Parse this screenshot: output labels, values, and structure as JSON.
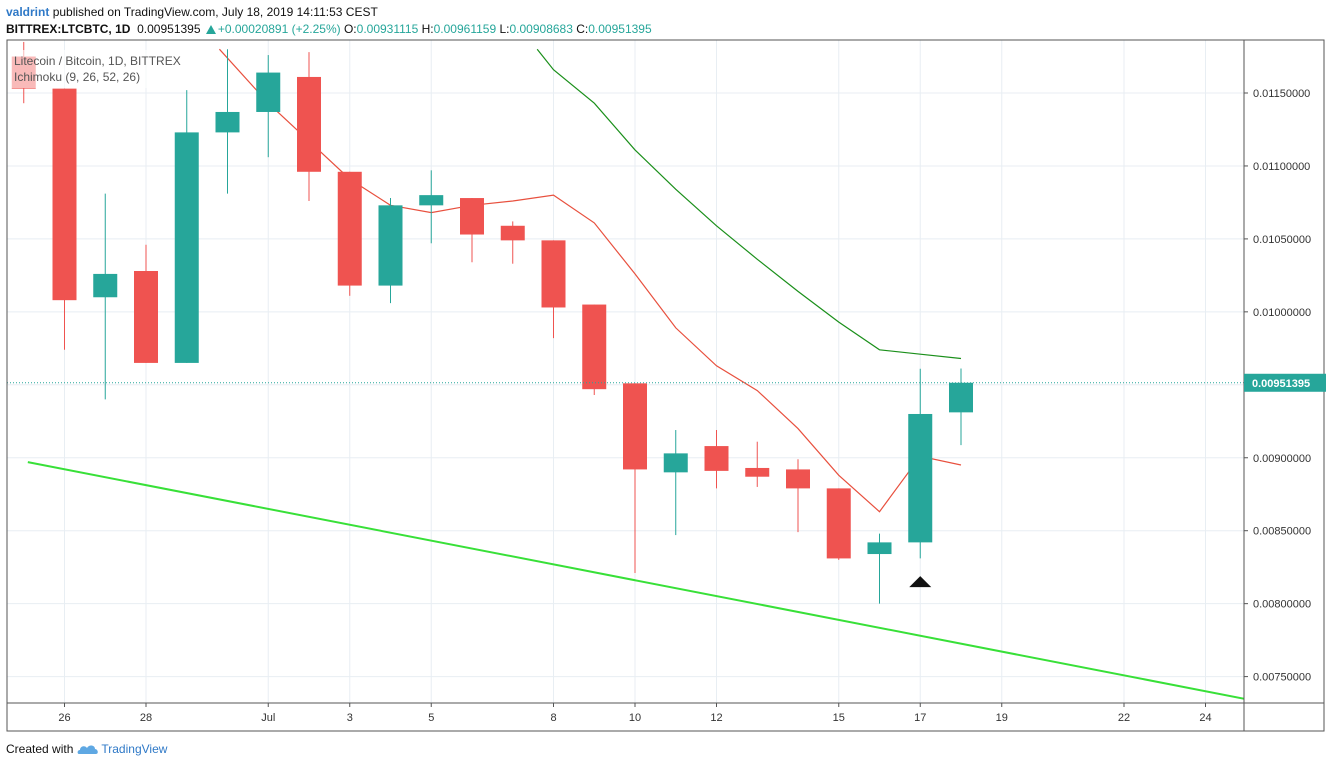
{
  "header": {
    "author": "valdrint",
    "published_text": "published on TradingView.com, July 18, 2019 14:11:53 CEST",
    "symbol_line": "BITTREX:LTCBTC, 1D",
    "last": "0.00951395",
    "change": "+0.00020891 (+2.25%)",
    "o_label": "O:",
    "o_val": "0.00931115",
    "h_label": "H:",
    "h_val": "0.00961159",
    "l_label": "L:",
    "l_val": "0.00908683",
    "c_label": "C:",
    "c_val": "0.00951395"
  },
  "legend": {
    "title": "Litecoin / Bitcoin, 1D, BITTREX",
    "indicator": "Ichimoku (9, 26, 52, 26)"
  },
  "footer": {
    "created_with": "Created with",
    "brand": "TradingView"
  },
  "colors": {
    "up": "#26a69a",
    "down": "#ef5350",
    "conversion_line": "#e8503e",
    "base_line": "#1a8f1a",
    "trendline": "#38e038",
    "price_line": "#26a69a",
    "grid": "#e8eef3"
  },
  "chart_data": {
    "type": "candlestick",
    "y_ticks": [
      "0.01150000",
      "0.01100000",
      "0.01050000",
      "0.01000000",
      "0.00950000",
      "0.00900000",
      "0.00850000",
      "0.00800000",
      "0.00750000"
    ],
    "y_tick_values": [
      0.0115,
      0.011,
      0.0105,
      0.01,
      0.0095,
      0.009,
      0.0085,
      0.008,
      0.0075
    ],
    "x_ticks": [
      {
        "label": "26",
        "day": 26
      },
      {
        "label": "28",
        "day": 28
      },
      {
        "label": "Jul",
        "day": 31
      },
      {
        "label": "3",
        "day": 33
      },
      {
        "label": "5",
        "day": 35
      },
      {
        "label": "8",
        "day": 38
      },
      {
        "label": "10",
        "day": 40
      },
      {
        "label": "12",
        "day": 42
      },
      {
        "label": "15",
        "day": 45
      },
      {
        "label": "17",
        "day": 47
      },
      {
        "label": "19",
        "day": 49
      },
      {
        "label": "22",
        "day": 52
      },
      {
        "label": "24",
        "day": 54
      }
    ],
    "last_price_label": "0.00951395",
    "last_price": 0.00951395,
    "candles": [
      {
        "day": 25,
        "o": 0.01175,
        "h": 0.01185,
        "l": 0.01143,
        "c": 0.01153
      },
      {
        "day": 26,
        "o": 0.01153,
        "h": 0.01153,
        "l": 0.00974,
        "c": 0.01008
      },
      {
        "day": 27,
        "o": 0.0101,
        "h": 0.01081,
        "l": 0.0094,
        "c": 0.01026
      },
      {
        "day": 28,
        "o": 0.01028,
        "h": 0.01046,
        "l": 0.00965,
        "c": 0.00965
      },
      {
        "day": 29,
        "o": 0.00965,
        "h": 0.01152,
        "l": 0.00965,
        "c": 0.01123
      },
      {
        "day": 30,
        "o": 0.01123,
        "h": 0.0118,
        "l": 0.01081,
        "c": 0.01137
      },
      {
        "day": 31,
        "o": 0.01137,
        "h": 0.01176,
        "l": 0.01106,
        "c": 0.01164
      },
      {
        "day": 32,
        "o": 0.01161,
        "h": 0.01178,
        "l": 0.01076,
        "c": 0.01096
      },
      {
        "day": 33,
        "o": 0.01096,
        "h": 0.01096,
        "l": 0.01011,
        "c": 0.01018
      },
      {
        "day": 34,
        "o": 0.01018,
        "h": 0.01078,
        "l": 0.01006,
        "c": 0.01073
      },
      {
        "day": 35,
        "o": 0.01073,
        "h": 0.01097,
        "l": 0.01047,
        "c": 0.0108
      },
      {
        "day": 36,
        "o": 0.01078,
        "h": 0.01078,
        "l": 0.01034,
        "c": 0.01053
      },
      {
        "day": 37,
        "o": 0.01059,
        "h": 0.01062,
        "l": 0.01033,
        "c": 0.01049
      },
      {
        "day": 38,
        "o": 0.01049,
        "h": 0.01049,
        "l": 0.00982,
        "c": 0.01003
      },
      {
        "day": 39,
        "o": 0.01005,
        "h": 0.01005,
        "l": 0.00943,
        "c": 0.00947
      },
      {
        "day": 40,
        "o": 0.00951,
        "h": 0.00951,
        "l": 0.00821,
        "c": 0.00892
      },
      {
        "day": 41,
        "o": 0.0089,
        "h": 0.00919,
        "l": 0.00847,
        "c": 0.00903
      },
      {
        "day": 42,
        "o": 0.00908,
        "h": 0.00919,
        "l": 0.00879,
        "c": 0.00891
      },
      {
        "day": 43,
        "o": 0.00893,
        "h": 0.00911,
        "l": 0.0088,
        "c": 0.00887
      },
      {
        "day": 44,
        "o": 0.00892,
        "h": 0.00899,
        "l": 0.00849,
        "c": 0.00879
      },
      {
        "day": 45,
        "o": 0.00879,
        "h": 0.00879,
        "l": 0.0083,
        "c": 0.00831
      },
      {
        "day": 46,
        "o": 0.00834,
        "h": 0.00848,
        "l": 0.008,
        "c": 0.00842
      },
      {
        "day": 47,
        "o": 0.00842,
        "h": 0.00961,
        "l": 0.00831,
        "c": 0.0093
      },
      {
        "day": 48,
        "o": 0.00931115,
        "h": 0.00961159,
        "l": 0.00908683,
        "c": 0.00951395
      }
    ],
    "series": [
      {
        "points": [
          [
            29.8,
            0.0118
          ],
          [
            31,
            0.01143
          ],
          [
            32,
            0.01117
          ],
          [
            33,
            0.01091
          ],
          [
            34,
            0.01073
          ],
          [
            35,
            0.01068
          ],
          [
            36,
            0.01073
          ],
          [
            37,
            0.01076
          ],
          [
            38,
            0.0108
          ],
          [
            39,
            0.01061
          ],
          [
            40,
            0.01026
          ],
          [
            41,
            0.00989
          ],
          [
            42,
            0.00963
          ],
          [
            43,
            0.00946
          ],
          [
            44,
            0.0092
          ],
          [
            45,
            0.00888
          ],
          [
            46,
            0.00863
          ],
          [
            47,
            0.00901
          ],
          [
            48,
            0.00895
          ]
        ]
      },
      {
        "points": [
          [
            37.6,
            0.0118
          ],
          [
            38,
            0.01166
          ],
          [
            39,
            0.01143
          ],
          [
            40,
            0.01111
          ],
          [
            41,
            0.01084
          ],
          [
            42,
            0.01059
          ],
          [
            43,
            0.01036
          ],
          [
            44,
            0.01014
          ],
          [
            45,
            0.00993
          ],
          [
            46,
            0.00974
          ],
          [
            47,
            0.00971
          ],
          [
            48,
            0.00968
          ]
        ]
      }
    ],
    "trendline": [
      [
        25.1,
        0.00897
      ],
      [
        55.1,
        0.00734
      ]
    ],
    "annotation": {
      "day": 47,
      "price": 0.00812
    }
  }
}
